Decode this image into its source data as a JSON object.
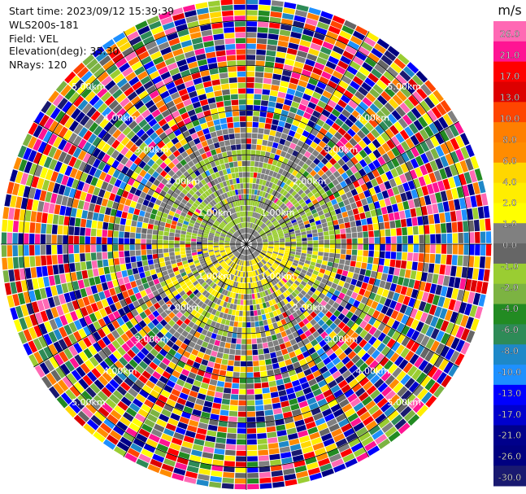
{
  "header": {
    "start_time": "Start time: 2023/09/12 15:39:39",
    "instrument": "WLS200s-181",
    "field": "Field: VEL",
    "elevation": "Elevation(deg): 35.30",
    "nrays": "NRays: 120"
  },
  "chart_data": {
    "type": "heatmap",
    "projection": "polar-ppi",
    "field": "VEL",
    "units": "m/s",
    "n_rays": 120,
    "n_gates": 44,
    "max_range_km": 5.5,
    "range_ring_labels": [
      "1.00km",
      "2.00km",
      "3.00km",
      "4.00km",
      "5.00km"
    ],
    "range_rings_km": [
      1,
      2,
      3,
      4,
      5
    ],
    "spoke_angles_deg": [
      0,
      30,
      60,
      90,
      120,
      150,
      180,
      210,
      240,
      270,
      300,
      330
    ],
    "near_field_pattern": {
      "north_half_dominant_colors": [
        "#9acd32",
        "#8c8c8c"
      ],
      "south_half_dominant_colors": [
        "#ffee00",
        "#8c8c8c"
      ],
      "far_field": "noise (random colors)"
    },
    "colorbar": {
      "title": "m/s",
      "tick_labels": [
        "26.0",
        "21.0",
        "17.0",
        "13.0",
        "10.0",
        "8.0",
        "6.0",
        "4.0",
        "2.0",
        "1.0",
        "0.0",
        "-1.0",
        "-2.0",
        "-4.0",
        "-6.0",
        "-8.0",
        "-10.0",
        "-13.0",
        "-17.0",
        "-21.0",
        "-26.0",
        "-30.0"
      ],
      "colors": [
        "#ff69b4",
        "#ff1493",
        "#ff0000",
        "#dd0000",
        "#ff4500",
        "#ff7f00",
        "#ff8c00",
        "#ffd700",
        "#ffee00",
        "#ffff00",
        "#808080",
        "#666666",
        "#9acd32",
        "#7cb342",
        "#228b22",
        "#2e8b57",
        "#1e88c8",
        "#1e90ff",
        "#0000ff",
        "#0000cd",
        "#00008b",
        "#000080",
        "#191970"
      ]
    }
  }
}
